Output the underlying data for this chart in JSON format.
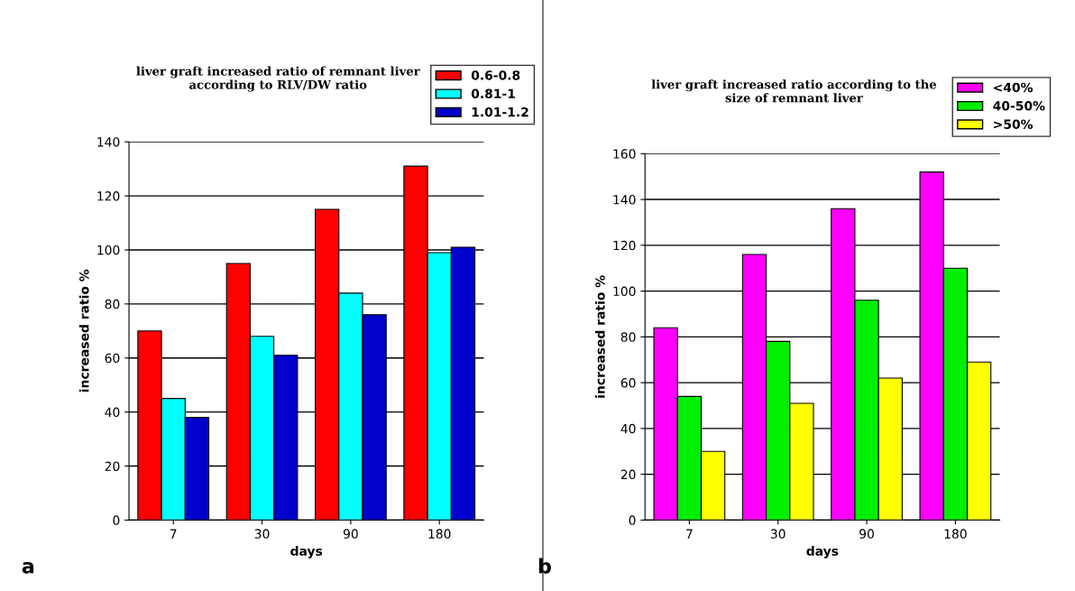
{
  "chart_data": [
    {
      "type": "bar",
      "title": "liver graft increased ratio of remnant liver\naccording to RLV/DW ratio",
      "xlabel": "days",
      "ylabel": "increased ratio %",
      "categories": [
        "7",
        "30",
        "90",
        "180"
      ],
      "series": [
        {
          "name": "0.6-0.8",
          "color": "#ff0000",
          "values": [
            70,
            95,
            115,
            131
          ]
        },
        {
          "name": "0.81-1",
          "color": "#00ffff",
          "values": [
            45,
            68,
            84,
            99
          ]
        },
        {
          "name": "1.01-1.2",
          "color": "#0000cc",
          "values": [
            38,
            61,
            76,
            101
          ]
        }
      ],
      "ylim": [
        0,
        140
      ],
      "yticks": [
        0,
        20,
        40,
        60,
        80,
        100,
        120,
        140
      ],
      "grid": "y",
      "legend": "top right",
      "annotations": [
        "a"
      ]
    },
    {
      "type": "bar",
      "title": "liver graft increased ratio according to the\nsize of remnant liver",
      "xlabel": "days",
      "ylabel": "increased ratio %",
      "categories": [
        "7",
        "30",
        "90",
        "180"
      ],
      "series": [
        {
          "name": "<40%",
          "color": "#ff00ff",
          "values": [
            84,
            116,
            136,
            152
          ]
        },
        {
          "name": "40-50%",
          "color": "#00ee00",
          "values": [
            54,
            78,
            96,
            110
          ]
        },
        {
          "name": ">50%",
          "color": "#ffff00",
          "values": [
            30,
            51,
            62,
            69
          ]
        }
      ],
      "ylim": [
        0,
        160
      ],
      "yticks": [
        0,
        20,
        40,
        60,
        80,
        100,
        120,
        140,
        160
      ],
      "grid": "y",
      "legend": "top right",
      "annotations": [
        "b"
      ]
    }
  ]
}
